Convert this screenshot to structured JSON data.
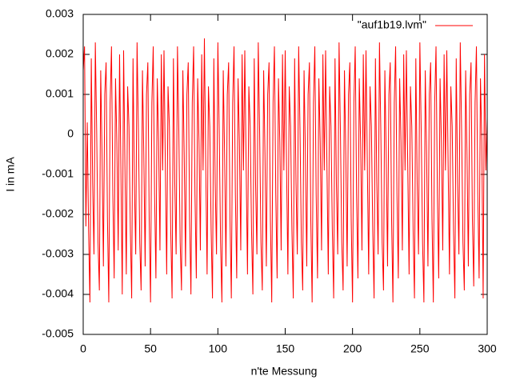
{
  "chart_data": {
    "type": "line",
    "x_label": "n'te Messung",
    "y_label": "I in mA",
    "legend": "top-right",
    "xlim": [
      0,
      300
    ],
    "xticks": [
      0,
      50,
      100,
      150,
      200,
      250,
      300
    ],
    "ylim": [
      -0.005,
      0.003
    ],
    "yticks": [
      -0.005,
      -0.004,
      -0.003,
      -0.002,
      -0.001,
      0,
      0.001,
      0.002,
      0.003
    ],
    "x": [
      0,
      1,
      2,
      3,
      4,
      5,
      6,
      7,
      8,
      9,
      10,
      11,
      12,
      13,
      14,
      15,
      16,
      17,
      18,
      19,
      20,
      21,
      22,
      23,
      24,
      25,
      26,
      27,
      28,
      29,
      30,
      31,
      32,
      33,
      34,
      35,
      36,
      37,
      38,
      39,
      40,
      41,
      42,
      43,
      44,
      45,
      46,
      47,
      48,
      49,
      50,
      51,
      52,
      53,
      54,
      55,
      56,
      57,
      58,
      59,
      60,
      61,
      62,
      63,
      64,
      65,
      66,
      67,
      68,
      69,
      70,
      71,
      72,
      73,
      74,
      75,
      76,
      77,
      78,
      79,
      80,
      81,
      82,
      83,
      84,
      85,
      86,
      87,
      88,
      89,
      90,
      91,
      92,
      93,
      94,
      95,
      96,
      97,
      98,
      99,
      100,
      101,
      102,
      103,
      104,
      105,
      106,
      107,
      108,
      109,
      110,
      111,
      112,
      113,
      114,
      115,
      116,
      117,
      118,
      119,
      120,
      121,
      122,
      123,
      124,
      125,
      126,
      127,
      128,
      129,
      130,
      131,
      132,
      133,
      134,
      135,
      136,
      137,
      138,
      139,
      140,
      141,
      142,
      143,
      144,
      145,
      146,
      147,
      148,
      149,
      150,
      151,
      152,
      153,
      154,
      155,
      156,
      157,
      158,
      159,
      160,
      161,
      162,
      163,
      164,
      165,
      166,
      167,
      168,
      169,
      170,
      171,
      172,
      173,
      174,
      175,
      176,
      177,
      178,
      179,
      180,
      181,
      182,
      183,
      184,
      185,
      186,
      187,
      188,
      189,
      190,
      191,
      192,
      193,
      194,
      195,
      196,
      197,
      198,
      199,
      200,
      201,
      202,
      203,
      204,
      205,
      206,
      207,
      208,
      209,
      210,
      211,
      212,
      213,
      214,
      215,
      216,
      217,
      218,
      219,
      220,
      221,
      222,
      223,
      224,
      225,
      226,
      227,
      228,
      229,
      230,
      231,
      232,
      233,
      234,
      235,
      236,
      237,
      238,
      239,
      240,
      241,
      242,
      243,
      244,
      245,
      246,
      247,
      248,
      249,
      250,
      251,
      252,
      253,
      254,
      255,
      256,
      257,
      258,
      259,
      260,
      261,
      262,
      263,
      264,
      265,
      266,
      267,
      268,
      269,
      270,
      271,
      272,
      273,
      274,
      275,
      276,
      277,
      278,
      279,
      280,
      281,
      282,
      283,
      284,
      285,
      286,
      287,
      288,
      289,
      290,
      291,
      292,
      293,
      294,
      295,
      296,
      297,
      298,
      299,
      300
    ],
    "series": [
      {
        "name": "\"auf1b19.lvm\"",
        "color": "#ff0000",
        "values": [
          0.0016,
          0.0022,
          -0.0023,
          0.0003,
          -0.0024,
          -0.0042,
          0.0019,
          -0.0012,
          -0.003,
          0.0023,
          0.0001,
          -0.0027,
          -0.0039,
          0.0016,
          -0.0005,
          -0.0033,
          0.001,
          0.0018,
          -0.0021,
          -0.0042,
          0.0008,
          0.0022,
          -0.0015,
          -0.0036,
          0.0014,
          -0.0002,
          -0.0029,
          0.002,
          -0.0009,
          -0.004,
          0.0021,
          -0.0008,
          -0.0035,
          0.0012,
          0.0002,
          -0.0024,
          -0.0041,
          0.0019,
          -0.0012,
          -0.003,
          0.0023,
          0.0001,
          -0.0027,
          -0.0039,
          0.0016,
          -0.0005,
          -0.0033,
          0.001,
          0.0018,
          -0.0021,
          -0.0042,
          0.0008,
          0.0022,
          -0.0015,
          -0.0036,
          0.0014,
          -0.0002,
          -0.0029,
          0.002,
          -0.0009,
          0.0021,
          -0.0008,
          -0.0035,
          0.0012,
          0.0002,
          -0.0024,
          -0.0041,
          0.0019,
          -0.0012,
          -0.003,
          0.0022,
          0.0001,
          -0.0027,
          -0.0039,
          0.0016,
          -0.0005,
          -0.0033,
          0.001,
          0.0018,
          -0.0021,
          -0.004,
          0.0008,
          0.0022,
          -0.0015,
          -0.0036,
          0.0014,
          -0.0002,
          -0.0029,
          0.002,
          -0.0009,
          0.0024,
          -0.0008,
          -0.0035,
          0.0012,
          0.0002,
          -0.0024,
          -0.0041,
          0.0019,
          -0.0012,
          -0.003,
          0.0023,
          0.0001,
          -0.0027,
          -0.0042,
          0.0016,
          -0.0005,
          -0.0033,
          0.001,
          0.0018,
          -0.0021,
          -0.0041,
          0.0008,
          0.0022,
          -0.0015,
          -0.0036,
          0.0014,
          -0.0002,
          -0.0029,
          0.002,
          -0.0009,
          0.0021,
          -0.0008,
          -0.0035,
          0.0012,
          0.0002,
          -0.0024,
          -0.004,
          0.0019,
          -0.0012,
          -0.003,
          0.0023,
          0.0001,
          -0.0027,
          -0.0039,
          0.0016,
          -0.0005,
          -0.0033,
          0.001,
          0.0018,
          -0.0021,
          -0.0042,
          0.0008,
          0.0022,
          -0.0015,
          -0.0036,
          0.0014,
          -0.0002,
          -0.0029,
          0.002,
          -0.0009,
          0.0021,
          -0.0008,
          -0.0035,
          0.0012,
          0.0002,
          -0.0024,
          -0.0041,
          0.0019,
          -0.0012,
          -0.003,
          0.0022,
          0.0001,
          -0.0027,
          -0.0039,
          0.0016,
          -0.0005,
          -0.0033,
          0.001,
          0.0018,
          -0.0021,
          -0.0042,
          0.0008,
          0.0022,
          -0.0015,
          -0.0036,
          0.0014,
          -0.0002,
          -0.0029,
          0.002,
          -0.0009,
          0.0021,
          -0.0008,
          -0.0035,
          0.0012,
          0.0002,
          -0.0024,
          -0.0041,
          0.0019,
          -0.0012,
          -0.003,
          0.0023,
          0.0001,
          -0.0027,
          -0.0039,
          0.0016,
          -0.0005,
          -0.0033,
          0.001,
          0.0018,
          -0.0021,
          -0.0042,
          0.0008,
          0.0022,
          -0.0015,
          -0.0036,
          0.0014,
          -0.0002,
          -0.0029,
          0.002,
          -0.0009,
          0.0021,
          -0.0008,
          -0.0035,
          0.0012,
          0.0002,
          -0.0024,
          -0.0041,
          0.0019,
          -0.0012,
          -0.003,
          0.0023,
          0.0001,
          -0.0027,
          -0.0039,
          0.0016,
          -0.0005,
          -0.0033,
          0.001,
          0.0018,
          -0.0021,
          -0.0042,
          0.0008,
          0.0022,
          -0.0015,
          -0.0036,
          0.0014,
          -0.0002,
          -0.0029,
          0.002,
          -0.0009,
          0.0021,
          -0.0008,
          -0.0035,
          0.0012,
          0.0002,
          -0.0024,
          -0.0041,
          0.0019,
          -0.0012,
          -0.003,
          0.0023,
          0.0001,
          -0.0027,
          -0.0042,
          0.0016,
          -0.0005,
          -0.0033,
          0.001,
          0.0018,
          -0.0021,
          -0.0042,
          0.0008,
          0.0022,
          -0.0015,
          -0.0036,
          0.0014,
          -0.0002,
          -0.0029,
          0.002,
          -0.0009,
          0.0021,
          -0.0008,
          -0.0035,
          0.0012,
          0.0002,
          -0.0024,
          -0.0041,
          0.0019,
          -0.0012,
          -0.003,
          0.0023,
          0.0001,
          -0.0027,
          -0.0039,
          0.0016,
          -0.0005,
          -0.0033,
          0.001,
          0.0018,
          -0.0021,
          -0.0038,
          0.0008,
          0.0022,
          -0.0015,
          -0.0036,
          0.0014,
          -0.0002,
          -0.0041,
          0.002,
          -0.0009,
          0.0004
        ]
      }
    ]
  }
}
